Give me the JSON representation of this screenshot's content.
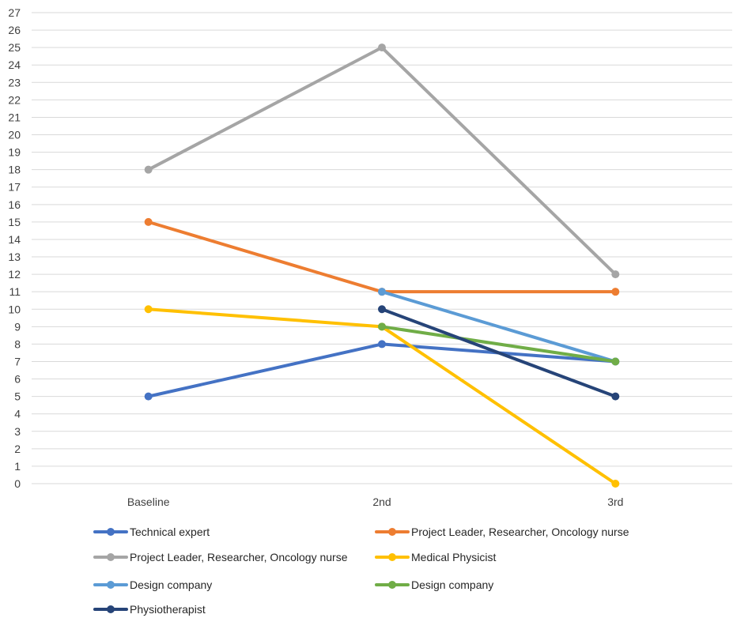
{
  "chart_data": {
    "type": "line",
    "categories": [
      "Baseline",
      "2nd",
      "3rd"
    ],
    "ylim": [
      0,
      27
    ],
    "yticks": [
      0,
      1,
      2,
      3,
      4,
      5,
      6,
      7,
      8,
      9,
      10,
      11,
      12,
      13,
      14,
      15,
      16,
      17,
      18,
      19,
      20,
      21,
      22,
      23,
      24,
      25,
      26,
      27
    ],
    "grid": true,
    "legend_position": "bottom",
    "series": [
      {
        "name": "Technical expert",
        "color": "#4472C4",
        "values": [
          5,
          8,
          7
        ]
      },
      {
        "name": "Project Leader, Researcher, Oncology nurse",
        "color": "#ED7D31",
        "values": [
          15,
          11,
          11
        ]
      },
      {
        "name": "Project Leader, Researcher, Oncology nurse",
        "color": "#A5A5A5",
        "values": [
          18,
          25,
          12
        ]
      },
      {
        "name": "Medical Physicist",
        "color": "#FFC000",
        "values": [
          10,
          9,
          0
        ]
      },
      {
        "name": "Design company",
        "color": "#5B9BD5",
        "values": [
          null,
          11,
          7
        ]
      },
      {
        "name": "Design company",
        "color": "#70AD47",
        "values": [
          null,
          9,
          7
        ]
      },
      {
        "name": "Physiotherapist",
        "color": "#264478",
        "values": [
          null,
          10,
          5
        ]
      }
    ]
  }
}
